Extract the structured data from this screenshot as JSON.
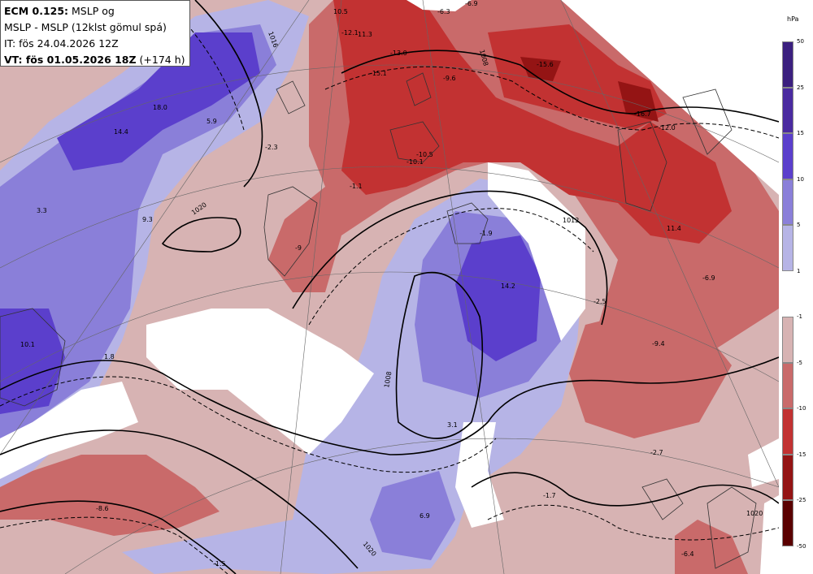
{
  "header": {
    "line1_bold": "ECM 0.125:",
    "line1_rest": " MSLP og",
    "line2": "MSLP - MSLP (12klst gömul spá)",
    "line3": "IT: fös 24.04.2026 12Z",
    "line4_bold": "VT: fös 01.05.2026 18Z",
    "line4_rest": " (+174 h)"
  },
  "colorbar": {
    "unit": "hPa",
    "positive_ticks": [
      "50",
      "25",
      "15",
      "10",
      "5",
      "1"
    ],
    "positive_colors": [
      "#3b1f7f",
      "#4a2aa0",
      "#5b3fcc",
      "#8a7fd9",
      "#b6b4e6"
    ],
    "negative_ticks": [
      "-1",
      "-5",
      "-10",
      "-15",
      "-25",
      "-50"
    ],
    "negative_colors": [
      "#d7b3b3",
      "#c96a6a",
      "#c23232",
      "#941414",
      "#5a0000"
    ]
  },
  "map": {
    "difference_labels": [
      "10.5",
      "-12.1",
      "11.3",
      "-13.0",
      "-15.1",
      "-9.6",
      "-15.6",
      "-16.7",
      "-12.0",
      "-6.3",
      "-6.9",
      "18.0",
      "14.4",
      "5.9",
      "-2.3",
      "3.3",
      "9.3",
      "-9",
      "-1.1",
      "-10.5",
      "-10.1",
      "-1.9",
      "11.4",
      "14.2",
      "-6.9",
      "-2.5",
      "10.1",
      "1.8",
      "-9.4",
      "3.1",
      "-2.7",
      "-8.6",
      "-1.7",
      "6.9",
      "-1.5",
      "-6.4"
    ],
    "isobar_labels": [
      "1016",
      "1008",
      "1020",
      "1012",
      "1008",
      "1020",
      "1020"
    ]
  }
}
